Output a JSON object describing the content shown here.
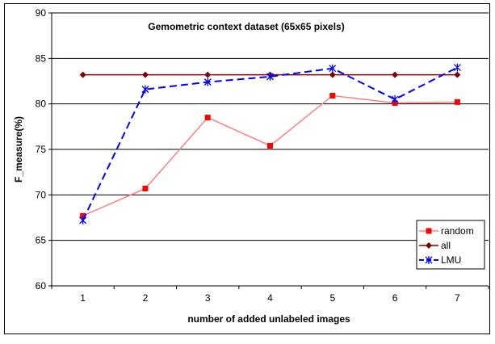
{
  "chart_data": {
    "type": "line",
    "title": "Gemometric context dataset (65x65 pixels)",
    "xlabel": "number of added unlabeled images",
    "ylabel": "F_measure(%)",
    "categories": [
      "1",
      "2",
      "3",
      "4",
      "5",
      "6",
      "7"
    ],
    "ylim": [
      60,
      90
    ],
    "yticks": [
      "60",
      "65",
      "70",
      "75",
      "80",
      "85",
      "90"
    ],
    "grid": "horizontal",
    "legend_position": "right",
    "series": [
      {
        "name": "random",
        "values": [
          67.7,
          70.7,
          78.5,
          75.4,
          80.9,
          80.1,
          80.2
        ],
        "color": "#ff8080",
        "marker": "square",
        "marker_color": "#ff0000",
        "line_style": "solid"
      },
      {
        "name": "all",
        "values": [
          83.2,
          83.2,
          83.2,
          83.2,
          83.2,
          83.2,
          83.2
        ],
        "color": "#800000",
        "marker": "diamond",
        "marker_color": "#800000",
        "line_style": "solid"
      },
      {
        "name": "LMU",
        "values": [
          67.2,
          81.6,
          82.4,
          83.0,
          83.9,
          80.5,
          84.0
        ],
        "color": "#0000ff",
        "marker": "star",
        "marker_color": "#0000ff",
        "line_style": "dashed"
      }
    ]
  }
}
